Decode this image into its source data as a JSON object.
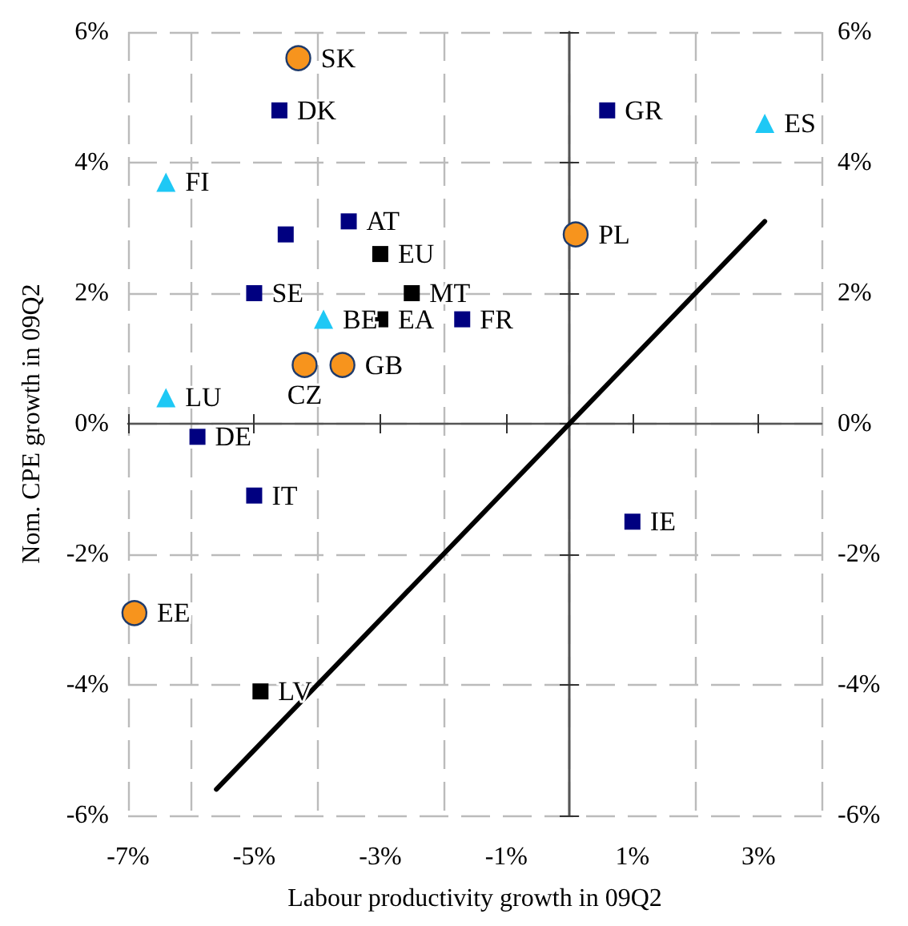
{
  "chart_data": {
    "type": "scatter",
    "xlabel": "Labour productivity growth in 09Q2",
    "ylabel": "Nom. CPE growth in 09Q2",
    "xlim": [
      -7,
      4
    ],
    "xticks": [
      {
        "value": -7,
        "label": "-7%"
      },
      {
        "value": -5,
        "label": "-5%"
      },
      {
        "value": -3,
        "label": "-3%"
      },
      {
        "value": -1,
        "label": "-1%"
      },
      {
        "value": 1,
        "label": "1%"
      },
      {
        "value": 3,
        "label": "3%"
      }
    ],
    "ylim": [
      -6,
      6
    ],
    "yticks": [
      {
        "value": -6,
        "label": "-6%"
      },
      {
        "value": -4,
        "label": "-4%"
      },
      {
        "value": -2,
        "label": "-2%"
      },
      {
        "value": 0,
        "label": "0%"
      },
      {
        "value": 2,
        "label": "2%"
      },
      {
        "value": 4,
        "label": "4%"
      },
      {
        "value": 6,
        "label": "6%"
      }
    ],
    "y2lim": [
      -6,
      6
    ],
    "y2ticks": [
      {
        "value": -6,
        "label": "-6%"
      },
      {
        "value": -4,
        "label": "-4%"
      },
      {
        "value": -2,
        "label": "-2%"
      },
      {
        "value": 0,
        "label": "0%"
      },
      {
        "value": 2,
        "label": "2%"
      },
      {
        "value": 4,
        "label": "4%"
      },
      {
        "value": 6,
        "label": "6%"
      }
    ],
    "grid": true,
    "series": [
      {
        "marker": "circle",
        "color": "#f7941d",
        "x": [
          -4.3,
          0.1,
          -4.2,
          -3.6,
          -6.9
        ],
        "values": [
          5.6,
          2.9,
          0.9,
          0.9,
          -2.9
        ],
        "value_labels": [
          "SK",
          "PL",
          "CZ",
          "GB",
          "EE"
        ]
      },
      {
        "marker": "square",
        "color": "#000080",
        "x": [
          -4.6,
          -3.5,
          -4.5,
          -5.0,
          -1.7,
          0.6,
          -5.9,
          -5.0,
          1.0
        ],
        "values": [
          4.8,
          3.1,
          2.9,
          2.0,
          1.6,
          4.8,
          -0.2,
          -1.1,
          -1.5
        ],
        "value_labels": [
          "DK",
          "AT",
          null,
          "SE",
          "FR",
          "GR",
          "DE",
          "IT",
          "IE"
        ]
      },
      {
        "marker": "triangle",
        "color": "#1ec8f5",
        "x": [
          -6.4,
          -3.9,
          -6.4,
          3.1
        ],
        "values": [
          3.7,
          1.6,
          0.4,
          4.6
        ],
        "value_labels": [
          "FI",
          "BE",
          "LU",
          "ES"
        ]
      },
      {
        "marker": "square",
        "color": "#000000",
        "x": [
          -3.0,
          -2.5,
          -3.0,
          -4.9
        ],
        "values": [
          2.6,
          2.0,
          1.6,
          -4.1
        ],
        "value_labels": [
          "EU",
          "MT",
          "EA",
          "LV"
        ]
      },
      {
        "type": "line",
        "marker": "none",
        "line_style": "solid",
        "color": "#000000",
        "x": [
          -5.6,
          3.1
        ],
        "values": [
          -5.6,
          3.1
        ]
      }
    ]
  }
}
